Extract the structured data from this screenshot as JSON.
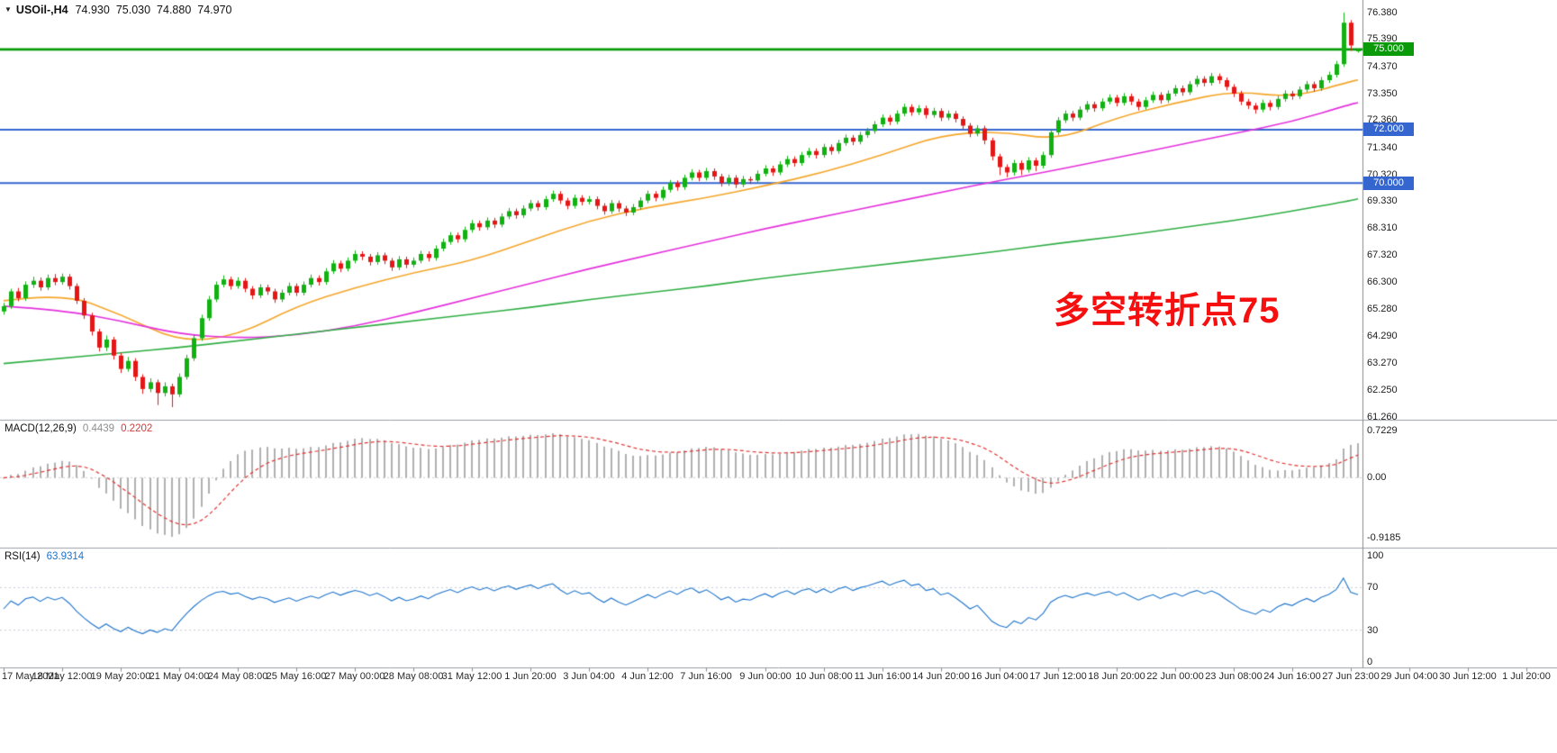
{
  "colors": {
    "background": "#ffffff",
    "candle_up": "#12b112",
    "candle_down": "#e41616",
    "separator": "#9aa0a6",
    "axis_line": "#8c8c8c",
    "axis_text": "#1c1c1c"
  },
  "header": {
    "dropdown_icon": "▼",
    "symbol_label": "USOil-,H4",
    "ohlc": {
      "open": "74.930",
      "high": "75.030",
      "low": "74.880",
      "close": "74.970"
    }
  },
  "chart_data": {
    "type": "candlestick",
    "symbol": "USOil-",
    "timeframe": "H4",
    "y_axis": {
      "range": [
        61.15,
        76.85
      ],
      "tick_labels": [
        "76.380",
        "75.390",
        "74.370",
        "73.350",
        "72.360",
        "71.340",
        "70.320",
        "69.330",
        "68.310",
        "67.320",
        "66.300",
        "65.280",
        "64.290",
        "63.270",
        "62.250",
        "61.260"
      ]
    },
    "x_axis": {
      "tick_labels": [
        "17 May 2021",
        "18 May 12:00",
        "19 May 20:00",
        "21 May 04:00",
        "24 May 08:00",
        "25 May 16:00",
        "27 May 00:00",
        "28 May 08:00",
        "31 May 12:00",
        "1 Jun 20:00",
        "3 Jun 04:00",
        "4 Jun 12:00",
        "7 Jun 16:00",
        "9 Jun 00:00",
        "10 Jun 08:00",
        "11 Jun 16:00",
        "14 Jun 20:00",
        "16 Jun 04:00",
        "17 Jun 12:00",
        "18 Jun 20:00",
        "22 Jun 00:00",
        "23 Jun 08:00",
        "24 Jun 16:00",
        "27 Jun 23:00",
        "29 Jun 04:00",
        "30 Jun 12:00",
        "1 Jul 20:00"
      ]
    },
    "horizontal_lines": [
      {
        "id": "line-75",
        "price": 75.0,
        "label": "75.000",
        "color": "#0a9a0a",
        "width": 2.6
      },
      {
        "id": "line-72",
        "price": 72.0,
        "label": "72.000",
        "color": "#3566cf",
        "width": 2
      },
      {
        "id": "line-70",
        "price": 70.0,
        "label": "70.000",
        "color": "#3566cf",
        "width": 2
      }
    ],
    "moving_averages": [
      {
        "name": "ma-fast",
        "color": "#f5a62a",
        "anchor_step": 8,
        "values": [
          65.6,
          65.9,
          65.1,
          64.05,
          64.3,
          65.4,
          66.1,
          66.65,
          67.1,
          67.85,
          68.6,
          69.1,
          69.45,
          69.9,
          70.4,
          71.05,
          71.8,
          71.95,
          71.6,
          72.45,
          73.0,
          73.45,
          73.2,
          73.8
        ]
      },
      {
        "name": "ma-mid",
        "color": "#e531dd",
        "anchor_step": 8,
        "values": [
          65.4,
          65.25,
          64.85,
          64.35,
          64.2,
          64.3,
          64.65,
          65.15,
          65.7,
          66.25,
          66.8,
          67.3,
          67.8,
          68.3,
          68.75,
          69.2,
          69.65,
          70.1,
          70.5,
          70.95,
          71.4,
          71.85,
          72.3,
          72.95
        ]
      },
      {
        "name": "ma-slow",
        "color": "#2fae44",
        "anchor_step": 8,
        "values": [
          63.25,
          63.45,
          63.65,
          63.85,
          64.1,
          64.35,
          64.6,
          64.85,
          65.1,
          65.35,
          65.65,
          65.9,
          66.15,
          66.45,
          66.7,
          66.95,
          67.2,
          67.45,
          67.75,
          68.0,
          68.3,
          68.6,
          68.95,
          69.35
        ]
      }
    ],
    "candles": [
      [
        65.2,
        65.52,
        65.08,
        65.4
      ],
      [
        65.4,
        66.05,
        65.3,
        65.95
      ],
      [
        65.95,
        66.08,
        65.58,
        65.7
      ],
      [
        65.7,
        66.32,
        65.6,
        66.2
      ],
      [
        66.2,
        66.5,
        66.08,
        66.35
      ],
      [
        66.35,
        66.47,
        65.98,
        66.1
      ],
      [
        66.1,
        66.58,
        66.0,
        66.45
      ],
      [
        66.45,
        66.6,
        66.18,
        66.3
      ],
      [
        66.3,
        66.62,
        66.2,
        66.5
      ],
      [
        66.5,
        66.6,
        66.02,
        66.15
      ],
      [
        66.15,
        66.25,
        65.48,
        65.6
      ],
      [
        65.6,
        65.7,
        64.92,
        65.05
      ],
      [
        65.05,
        65.15,
        64.3,
        64.45
      ],
      [
        64.45,
        64.55,
        63.7,
        63.85
      ],
      [
        63.85,
        64.3,
        63.72,
        64.15
      ],
      [
        64.15,
        64.25,
        63.4,
        63.55
      ],
      [
        63.55,
        63.65,
        62.9,
        63.05
      ],
      [
        63.05,
        63.5,
        62.95,
        63.35
      ],
      [
        63.35,
        63.45,
        62.6,
        62.75
      ],
      [
        62.75,
        62.85,
        62.12,
        62.3
      ],
      [
        62.3,
        62.7,
        62.18,
        62.55
      ],
      [
        62.55,
        62.65,
        61.7,
        62.15
      ],
      [
        62.15,
        62.55,
        62.02,
        62.4
      ],
      [
        62.4,
        62.5,
        61.62,
        62.1
      ],
      [
        62.1,
        62.88,
        62.0,
        62.75
      ],
      [
        62.75,
        63.58,
        62.65,
        63.45
      ],
      [
        63.45,
        64.32,
        63.35,
        64.2
      ],
      [
        64.2,
        65.08,
        64.1,
        64.95
      ],
      [
        64.95,
        65.78,
        64.85,
        65.65
      ],
      [
        65.65,
        66.32,
        65.55,
        66.2
      ],
      [
        66.2,
        66.55,
        66.1,
        66.4
      ],
      [
        66.4,
        66.5,
        66.02,
        66.15
      ],
      [
        66.15,
        66.48,
        66.05,
        66.35
      ],
      [
        66.35,
        66.45,
        65.92,
        66.05
      ],
      [
        66.05,
        66.15,
        65.66,
        65.8
      ],
      [
        65.8,
        66.22,
        65.7,
        66.1
      ],
      [
        66.1,
        66.2,
        65.82,
        65.95
      ],
      [
        65.95,
        66.05,
        65.52,
        65.65
      ],
      [
        65.65,
        66.02,
        65.55,
        65.9
      ],
      [
        65.9,
        66.28,
        65.8,
        66.15
      ],
      [
        66.15,
        66.25,
        65.78,
        65.9
      ],
      [
        65.9,
        66.32,
        65.8,
        66.2
      ],
      [
        66.2,
        66.58,
        66.1,
        66.45
      ],
      [
        66.45,
        66.55,
        66.17,
        66.3
      ],
      [
        66.3,
        66.82,
        66.2,
        66.7
      ],
      [
        66.7,
        67.12,
        66.6,
        67.0
      ],
      [
        67.0,
        67.1,
        66.67,
        66.8
      ],
      [
        66.8,
        67.22,
        66.7,
        67.1
      ],
      [
        67.1,
        67.48,
        67.0,
        67.35
      ],
      [
        67.35,
        67.45,
        67.12,
        67.25
      ],
      [
        67.25,
        67.35,
        66.92,
        67.05
      ],
      [
        67.05,
        67.42,
        66.95,
        67.3
      ],
      [
        67.3,
        67.4,
        66.97,
        67.1
      ],
      [
        67.1,
        67.2,
        66.72,
        66.85
      ],
      [
        66.85,
        67.27,
        66.75,
        67.15
      ],
      [
        67.15,
        67.25,
        66.82,
        66.95
      ],
      [
        66.95,
        67.22,
        66.85,
        67.1
      ],
      [
        67.1,
        67.47,
        67.0,
        67.35
      ],
      [
        67.35,
        67.45,
        67.07,
        67.2
      ],
      [
        67.2,
        67.67,
        67.1,
        67.55
      ],
      [
        67.55,
        67.92,
        67.45,
        67.8
      ],
      [
        67.8,
        68.17,
        67.7,
        68.05
      ],
      [
        68.05,
        68.15,
        67.77,
        67.9
      ],
      [
        67.9,
        68.37,
        67.8,
        68.25
      ],
      [
        68.25,
        68.62,
        68.15,
        68.5
      ],
      [
        68.5,
        68.6,
        68.22,
        68.35
      ],
      [
        68.35,
        68.72,
        68.25,
        68.6
      ],
      [
        68.6,
        68.7,
        68.32,
        68.45
      ],
      [
        68.45,
        68.87,
        68.35,
        68.75
      ],
      [
        68.75,
        69.07,
        68.65,
        68.95
      ],
      [
        68.95,
        69.05,
        68.67,
        68.8
      ],
      [
        68.8,
        69.17,
        68.7,
        69.05
      ],
      [
        69.05,
        69.37,
        68.95,
        69.25
      ],
      [
        69.25,
        69.35,
        68.97,
        69.1
      ],
      [
        69.1,
        69.52,
        69.0,
        69.4
      ],
      [
        69.4,
        69.72,
        69.3,
        69.6
      ],
      [
        69.6,
        69.7,
        69.22,
        69.35
      ],
      [
        69.35,
        69.45,
        69.02,
        69.15
      ],
      [
        69.15,
        69.57,
        69.05,
        69.45
      ],
      [
        69.45,
        69.55,
        69.17,
        69.3
      ],
      [
        69.3,
        69.52,
        69.2,
        69.4
      ],
      [
        69.4,
        69.5,
        69.02,
        69.15
      ],
      [
        69.15,
        69.25,
        68.82,
        68.95
      ],
      [
        68.95,
        69.37,
        68.85,
        69.25
      ],
      [
        69.25,
        69.35,
        68.92,
        69.05
      ],
      [
        69.05,
        69.15,
        68.77,
        68.9
      ],
      [
        68.9,
        69.22,
        68.8,
        69.1
      ],
      [
        69.1,
        69.47,
        69.0,
        69.35
      ],
      [
        69.35,
        69.72,
        69.25,
        69.6
      ],
      [
        69.6,
        69.7,
        69.32,
        69.45
      ],
      [
        69.45,
        69.87,
        69.35,
        69.75
      ],
      [
        69.75,
        70.12,
        69.65,
        70.0
      ],
      [
        70.0,
        70.1,
        69.72,
        69.85
      ],
      [
        69.85,
        70.32,
        69.75,
        70.2
      ],
      [
        70.2,
        70.52,
        70.1,
        70.4
      ],
      [
        70.4,
        70.5,
        70.07,
        70.2
      ],
      [
        70.2,
        70.57,
        70.1,
        70.45
      ],
      [
        70.45,
        70.55,
        70.12,
        70.25
      ],
      [
        70.25,
        70.35,
        69.87,
        70.0
      ],
      [
        70.0,
        70.32,
        69.9,
        70.2
      ],
      [
        70.2,
        70.3,
        69.82,
        69.95
      ],
      [
        69.95,
        70.27,
        69.85,
        70.15
      ],
      [
        70.15,
        70.25,
        69.97,
        70.1
      ],
      [
        70.1,
        70.47,
        70.0,
        70.35
      ],
      [
        70.35,
        70.67,
        70.25,
        70.55
      ],
      [
        70.55,
        70.65,
        70.27,
        70.4
      ],
      [
        70.4,
        70.82,
        70.3,
        70.7
      ],
      [
        70.7,
        71.02,
        70.6,
        70.9
      ],
      [
        70.9,
        71.0,
        70.62,
        70.75
      ],
      [
        70.75,
        71.17,
        70.65,
        71.05
      ],
      [
        71.05,
        71.32,
        70.95,
        71.2
      ],
      [
        71.2,
        71.3,
        70.92,
        71.05
      ],
      [
        71.05,
        71.47,
        70.95,
        71.35
      ],
      [
        71.35,
        71.45,
        71.07,
        71.2
      ],
      [
        71.2,
        71.62,
        71.1,
        71.5
      ],
      [
        71.5,
        71.82,
        71.4,
        71.7
      ],
      [
        71.7,
        71.8,
        71.42,
        71.55
      ],
      [
        71.55,
        71.92,
        71.45,
        71.8
      ],
      [
        71.8,
        72.07,
        71.7,
        71.95
      ],
      [
        71.95,
        72.32,
        71.85,
        72.2
      ],
      [
        72.2,
        72.57,
        72.1,
        72.45
      ],
      [
        72.45,
        72.55,
        72.17,
        72.3
      ],
      [
        72.3,
        72.72,
        72.2,
        72.6
      ],
      [
        72.6,
        72.97,
        72.5,
        72.85
      ],
      [
        72.85,
        72.95,
        72.52,
        72.65
      ],
      [
        72.65,
        72.92,
        72.55,
        72.8
      ],
      [
        72.8,
        72.9,
        72.42,
        72.55
      ],
      [
        72.55,
        72.82,
        72.45,
        72.7
      ],
      [
        72.7,
        72.8,
        72.32,
        72.45
      ],
      [
        72.45,
        72.72,
        72.35,
        72.6
      ],
      [
        72.6,
        72.7,
        72.27,
        72.4
      ],
      [
        72.4,
        72.5,
        72.02,
        72.15
      ],
      [
        72.15,
        72.25,
        71.72,
        71.85
      ],
      [
        71.85,
        72.17,
        71.75,
        72.05
      ],
      [
        72.05,
        72.15,
        71.45,
        71.6
      ],
      [
        71.6,
        71.7,
        70.85,
        71.0
      ],
      [
        71.0,
        71.1,
        70.3,
        70.6
      ],
      [
        70.6,
        70.7,
        70.22,
        70.4
      ],
      [
        70.4,
        70.87,
        70.28,
        70.75
      ],
      [
        70.75,
        70.85,
        70.3,
        70.5
      ],
      [
        70.5,
        70.97,
        70.4,
        70.85
      ],
      [
        70.85,
        70.95,
        70.45,
        70.65
      ],
      [
        70.65,
        71.17,
        70.55,
        71.05
      ],
      [
        71.05,
        72.02,
        70.95,
        71.9
      ],
      [
        71.9,
        72.47,
        71.8,
        72.35
      ],
      [
        72.35,
        72.72,
        72.25,
        72.6
      ],
      [
        72.6,
        72.7,
        72.32,
        72.45
      ],
      [
        72.45,
        72.87,
        72.35,
        72.75
      ],
      [
        72.75,
        73.07,
        72.65,
        72.95
      ],
      [
        72.95,
        73.05,
        72.67,
        72.8
      ],
      [
        72.8,
        73.17,
        72.7,
        73.05
      ],
      [
        73.05,
        73.32,
        72.95,
        73.2
      ],
      [
        73.2,
        73.3,
        72.87,
        73.0
      ],
      [
        73.0,
        73.37,
        72.9,
        73.25
      ],
      [
        73.25,
        73.35,
        72.92,
        73.05
      ],
      [
        73.05,
        73.15,
        72.72,
        72.85
      ],
      [
        72.85,
        73.22,
        72.75,
        73.1
      ],
      [
        73.1,
        73.42,
        73.0,
        73.3
      ],
      [
        73.3,
        73.4,
        72.97,
        73.1
      ],
      [
        73.1,
        73.47,
        73.0,
        73.35
      ],
      [
        73.35,
        73.67,
        73.25,
        73.55
      ],
      [
        73.55,
        73.65,
        73.27,
        73.4
      ],
      [
        73.4,
        73.82,
        73.3,
        73.7
      ],
      [
        73.7,
        74.02,
        73.6,
        73.9
      ],
      [
        73.9,
        74.0,
        73.62,
        73.75
      ],
      [
        73.75,
        74.12,
        73.65,
        74.0
      ],
      [
        74.0,
        74.1,
        73.72,
        73.85
      ],
      [
        73.85,
        73.95,
        73.47,
        73.6
      ],
      [
        73.6,
        73.7,
        73.22,
        73.35
      ],
      [
        73.35,
        73.45,
        72.92,
        73.05
      ],
      [
        73.05,
        73.15,
        72.77,
        72.9
      ],
      [
        72.9,
        73.0,
        72.6,
        72.75
      ],
      [
        72.75,
        73.12,
        72.65,
        73.0
      ],
      [
        73.0,
        73.1,
        72.72,
        72.85
      ],
      [
        72.85,
        73.27,
        72.75,
        73.15
      ],
      [
        73.15,
        73.47,
        73.05,
        73.35
      ],
      [
        73.35,
        73.45,
        73.12,
        73.25
      ],
      [
        73.25,
        73.62,
        73.15,
        73.5
      ],
      [
        73.5,
        73.82,
        73.4,
        73.7
      ],
      [
        73.7,
        73.8,
        73.42,
        73.55
      ],
      [
        73.55,
        73.97,
        73.45,
        73.85
      ],
      [
        73.85,
        74.17,
        73.75,
        74.05
      ],
      [
        74.05,
        74.57,
        73.95,
        74.45
      ],
      [
        74.45,
        76.38,
        74.35,
        76.0
      ],
      [
        76.0,
        76.1,
        74.95,
        75.15
      ],
      [
        74.93,
        75.03,
        74.88,
        74.97
      ]
    ],
    "indicators": {
      "macd": {
        "label": "MACD(12,26,9)",
        "fast": 12,
        "slow": 26,
        "signal": 9,
        "value_main": "0.4439",
        "value_signal": "0.2202",
        "axis": {
          "range": [
            -0.9185,
            0.7229
          ],
          "tick_labels": [
            "0.7229",
            "0.00",
            "-0.9185"
          ]
        },
        "histogram_color": "#b0b0b0",
        "signal_color": "#e03232"
      },
      "rsi": {
        "label": "RSI(14)",
        "period": 14,
        "value": "63.9314",
        "axis": {
          "range": [
            0,
            100
          ],
          "tick_labels": [
            "100",
            "70",
            "30",
            "0"
          ]
        },
        "levels": [
          70,
          30
        ],
        "line_color": "#1d74cc"
      }
    },
    "annotation": {
      "text": "多空转折点75",
      "color": "#f50f0f"
    }
  }
}
